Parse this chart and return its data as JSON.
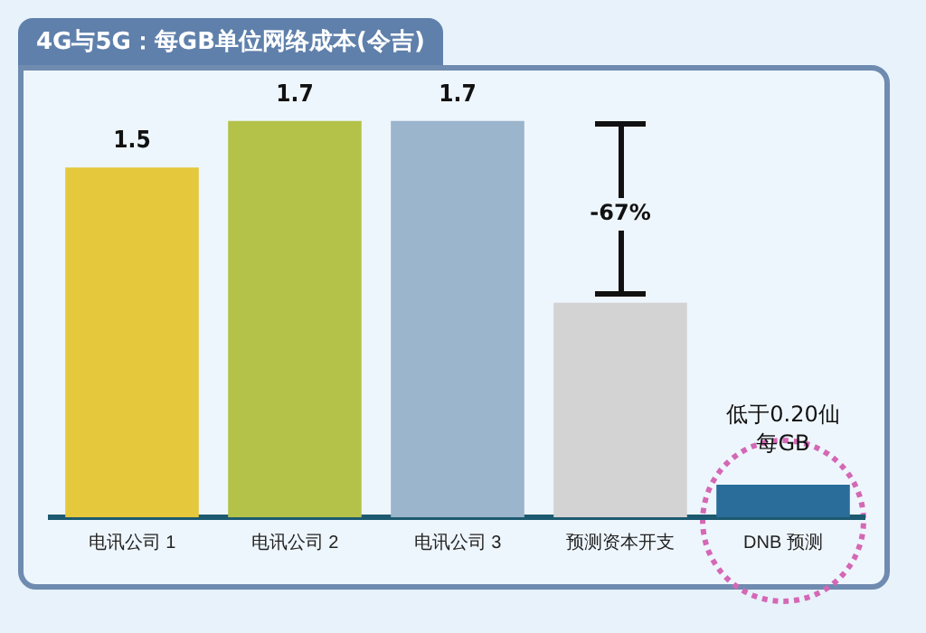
{
  "chart_data": {
    "type": "bar",
    "title": "4G与5G：每GB单位网络成本(令吉)",
    "categories": [
      "电讯公司 1",
      "电讯公司 2",
      "电讯公司 3",
      "预测资本开支",
      "DNB 预测"
    ],
    "values": [
      1.5,
      1.7,
      1.7,
      0.92,
      0.14
    ],
    "colors": [
      "#e5c83c",
      "#b5c24a",
      "#9bb5cc",
      "#d3d3d3",
      "#2a6d9a"
    ],
    "value_labels": [
      "1.5",
      "1.7",
      "1.7",
      null,
      null
    ],
    "annotations": [
      {
        "text": "-67%",
        "x": "预测资本开支",
        "y": 1.3
      },
      "低于0.20仙每GB"
    ],
    "grid": false,
    "legend": false
  }
}
